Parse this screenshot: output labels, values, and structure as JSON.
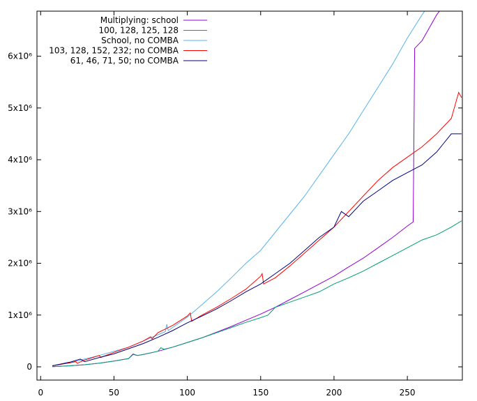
{
  "chart_data": {
    "type": "line",
    "title": "",
    "xlabel": "",
    "ylabel": "",
    "xlim": [
      -2.5,
      287.5
    ],
    "ylim": [
      -256000,
      6870000
    ],
    "grid": false,
    "legend_placement": "top-left",
    "x_ticks": [
      0,
      50,
      100,
      150,
      200,
      250
    ],
    "x_tick_labels": [
      "0",
      "50",
      "100",
      "150",
      "200",
      "250"
    ],
    "y_ticks": [
      0,
      1000000,
      2000000,
      3000000,
      4000000,
      5000000,
      6000000
    ],
    "y_tick_labels": [
      "0",
      "1x10⁶",
      "2x10⁶",
      "3x10⁶",
      "4x10⁶",
      "5x10⁶",
      "6x10⁶"
    ],
    "series": [
      {
        "name": "Multiplying: school",
        "color": "#9400d3",
        "points": [
          [
            8,
            3000
          ],
          [
            20,
            20000
          ],
          [
            30,
            40000
          ],
          [
            40,
            70000
          ],
          [
            50,
            110000
          ],
          [
            60,
            160000
          ],
          [
            63,
            240000
          ],
          [
            66,
            220000
          ],
          [
            70,
            240000
          ],
          [
            80,
            300000
          ],
          [
            90,
            380000
          ],
          [
            100,
            470000
          ],
          [
            110,
            560000
          ],
          [
            120,
            670000
          ],
          [
            130,
            780000
          ],
          [
            140,
            900000
          ],
          [
            150,
            1020000
          ],
          [
            160,
            1150000
          ],
          [
            170,
            1300000
          ],
          [
            180,
            1450000
          ],
          [
            190,
            1600000
          ],
          [
            200,
            1750000
          ],
          [
            210,
            1930000
          ],
          [
            220,
            2100000
          ],
          [
            230,
            2300000
          ],
          [
            240,
            2500000
          ],
          [
            250,
            2720000
          ],
          [
            254,
            2800000
          ],
          [
            255,
            6150000
          ],
          [
            260,
            6300000
          ],
          [
            265,
            6550000
          ],
          [
            270,
            6800000
          ],
          [
            274,
            6950000
          ]
        ]
      },
      {
        "name": "100, 128, 125, 128",
        "color": "#009e73",
        "points": [
          [
            8,
            3000
          ],
          [
            20,
            20000
          ],
          [
            30,
            40000
          ],
          [
            40,
            70000
          ],
          [
            50,
            110000
          ],
          [
            60,
            160000
          ],
          [
            63,
            250000
          ],
          [
            66,
            220000
          ],
          [
            70,
            240000
          ],
          [
            80,
            300000
          ],
          [
            82,
            370000
          ],
          [
            84,
            340000
          ],
          [
            90,
            380000
          ],
          [
            100,
            470000
          ],
          [
            110,
            560000
          ],
          [
            120,
            660000
          ],
          [
            130,
            760000
          ],
          [
            140,
            860000
          ],
          [
            150,
            950000
          ],
          [
            155,
            1000000
          ],
          [
            160,
            1150000
          ],
          [
            170,
            1250000
          ],
          [
            180,
            1350000
          ],
          [
            190,
            1450000
          ],
          [
            200,
            1600000
          ],
          [
            210,
            1720000
          ],
          [
            220,
            1850000
          ],
          [
            230,
            2000000
          ],
          [
            240,
            2150000
          ],
          [
            250,
            2300000
          ],
          [
            260,
            2450000
          ],
          [
            270,
            2550000
          ],
          [
            280,
            2700000
          ],
          [
            287,
            2820000
          ]
        ]
      },
      {
        "name": "School, no COMBA",
        "color": "#56b4e9",
        "points": [
          [
            8,
            20000
          ],
          [
            20,
            80000
          ],
          [
            30,
            150000
          ],
          [
            40,
            220000
          ],
          [
            50,
            300000
          ],
          [
            60,
            380000
          ],
          [
            70,
            500000
          ],
          [
            80,
            620000
          ],
          [
            85,
            680000
          ],
          [
            86,
            820000
          ],
          [
            87,
            700000
          ],
          [
            90,
            760000
          ],
          [
            100,
            960000
          ],
          [
            110,
            1200000
          ],
          [
            120,
            1450000
          ],
          [
            130,
            1720000
          ],
          [
            140,
            2000000
          ],
          [
            150,
            2250000
          ],
          [
            160,
            2600000
          ],
          [
            170,
            2950000
          ],
          [
            180,
            3300000
          ],
          [
            190,
            3700000
          ],
          [
            200,
            4100000
          ],
          [
            210,
            4500000
          ],
          [
            220,
            4950000
          ],
          [
            230,
            5400000
          ],
          [
            240,
            5850000
          ],
          [
            250,
            6350000
          ],
          [
            260,
            6800000
          ],
          [
            265,
            7000000
          ]
        ]
      },
      {
        "name": "103, 128, 152, 232; no COMBA",
        "color": "#ff0000",
        "points": [
          [
            8,
            20000
          ],
          [
            20,
            80000
          ],
          [
            24,
            100000
          ],
          [
            25,
            70000
          ],
          [
            30,
            130000
          ],
          [
            40,
            220000
          ],
          [
            41,
            180000
          ],
          [
            50,
            280000
          ],
          [
            60,
            380000
          ],
          [
            70,
            500000
          ],
          [
            75,
            580000
          ],
          [
            76,
            540000
          ],
          [
            80,
            660000
          ],
          [
            90,
            800000
          ],
          [
            100,
            980000
          ],
          [
            102,
            1040000
          ],
          [
            103,
            880000
          ],
          [
            110,
            1000000
          ],
          [
            120,
            1150000
          ],
          [
            130,
            1320000
          ],
          [
            140,
            1500000
          ],
          [
            150,
            1750000
          ],
          [
            151,
            1800000
          ],
          [
            152,
            1600000
          ],
          [
            160,
            1720000
          ],
          [
            170,
            1950000
          ],
          [
            180,
            2200000
          ],
          [
            190,
            2450000
          ],
          [
            200,
            2700000
          ],
          [
            210,
            3000000
          ],
          [
            220,
            3300000
          ],
          [
            230,
            3600000
          ],
          [
            240,
            3850000
          ],
          [
            250,
            4050000
          ],
          [
            260,
            4250000
          ],
          [
            270,
            4500000
          ],
          [
            280,
            4800000
          ],
          [
            285,
            5300000
          ],
          [
            287,
            5200000
          ]
        ]
      },
      {
        "name": "61, 46, 71, 50; no COMBA",
        "color": "#000080",
        "points": [
          [
            8,
            20000
          ],
          [
            20,
            90000
          ],
          [
            27,
            150000
          ],
          [
            30,
            100000
          ],
          [
            40,
            180000
          ],
          [
            50,
            250000
          ],
          [
            60,
            350000
          ],
          [
            70,
            450000
          ],
          [
            80,
            570000
          ],
          [
            90,
            700000
          ],
          [
            100,
            850000
          ],
          [
            110,
            980000
          ],
          [
            120,
            1120000
          ],
          [
            130,
            1280000
          ],
          [
            140,
            1450000
          ],
          [
            150,
            1600000
          ],
          [
            160,
            1800000
          ],
          [
            170,
            2000000
          ],
          [
            180,
            2250000
          ],
          [
            190,
            2500000
          ],
          [
            200,
            2700000
          ],
          [
            205,
            3000000
          ],
          [
            210,
            2900000
          ],
          [
            220,
            3200000
          ],
          [
            230,
            3400000
          ],
          [
            240,
            3600000
          ],
          [
            250,
            3750000
          ],
          [
            260,
            3900000
          ],
          [
            270,
            4150000
          ],
          [
            280,
            4500000
          ],
          [
            287,
            4500000
          ]
        ]
      }
    ]
  }
}
